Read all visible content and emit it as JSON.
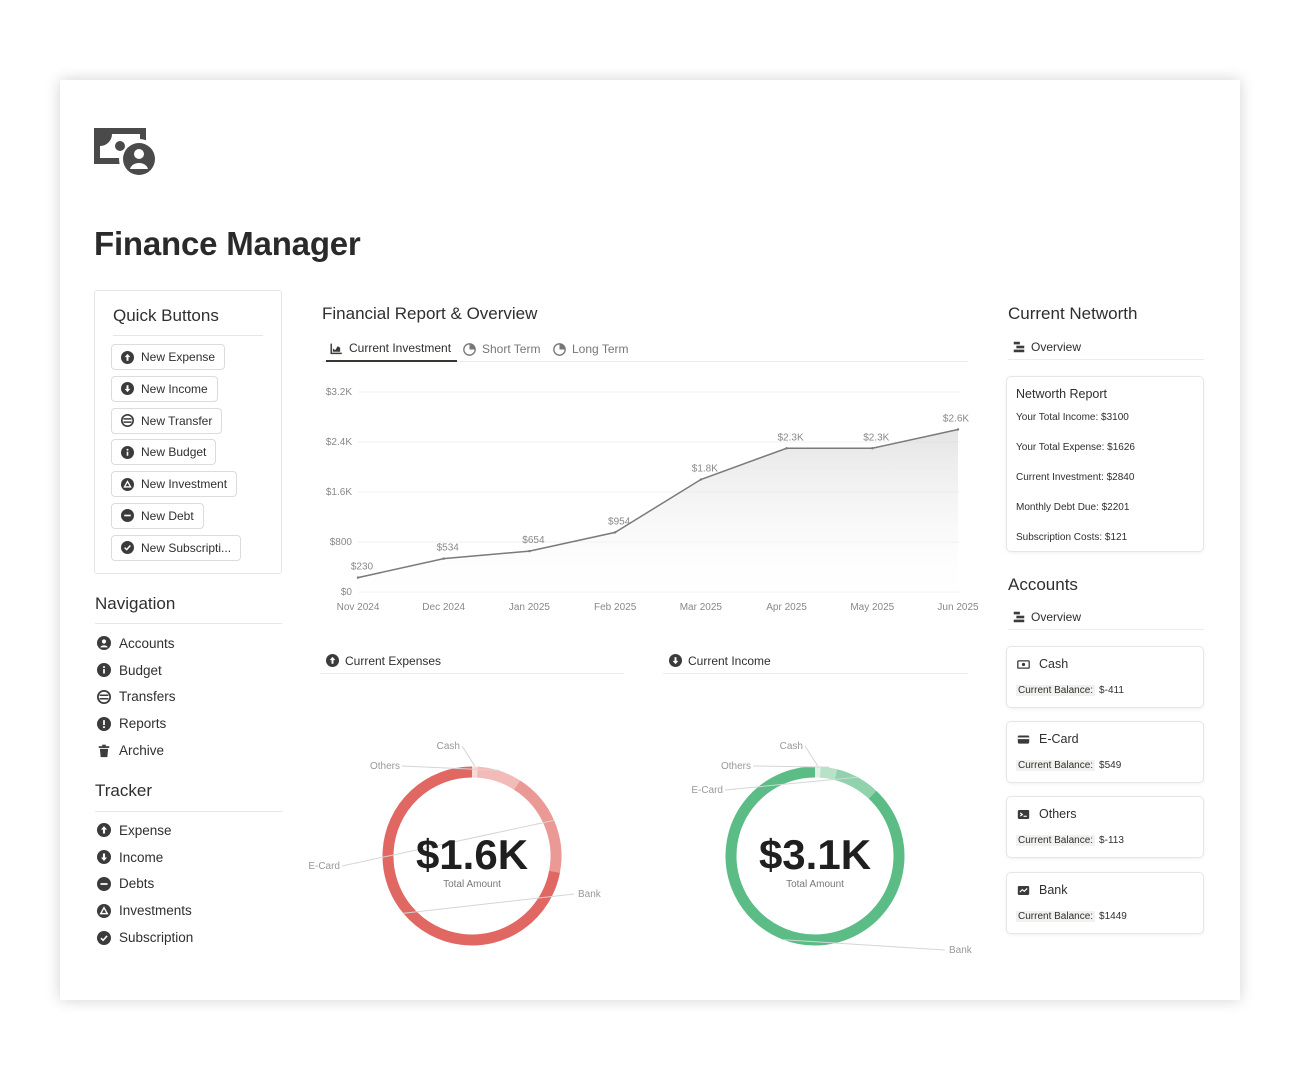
{
  "page": {
    "title": "Finance Manager",
    "logo_icon": "money-bill-user-icon"
  },
  "quick_buttons": {
    "title": "Quick Buttons",
    "items": [
      {
        "label": "New Expense",
        "icon": "arrow-up-circle-icon"
      },
      {
        "label": "New Income",
        "icon": "arrow-down-circle-icon"
      },
      {
        "label": "New Transfer",
        "icon": "transfer-circle-icon"
      },
      {
        "label": "New Budget",
        "icon": "info-circle-icon"
      },
      {
        "label": "New Investment",
        "icon": "triangle-circle-icon"
      },
      {
        "label": "New Debt",
        "icon": "minus-circle-icon"
      },
      {
        "label": "New Subscripti...",
        "icon": "check-circle-icon"
      }
    ]
  },
  "navigation": {
    "title": "Navigation",
    "items": [
      {
        "label": "Accounts",
        "icon": "user-circle-icon"
      },
      {
        "label": "Budget",
        "icon": "info-circle-icon"
      },
      {
        "label": "Transfers",
        "icon": "transfer-circle-icon"
      },
      {
        "label": "Reports",
        "icon": "exclamation-circle-icon"
      },
      {
        "label": "Archive",
        "icon": "trash-icon"
      }
    ]
  },
  "tracker": {
    "title": "Tracker",
    "items": [
      {
        "label": "Expense",
        "icon": "arrow-up-circle-icon"
      },
      {
        "label": "Income",
        "icon": "arrow-down-circle-icon"
      },
      {
        "label": "Debts",
        "icon": "minus-circle-icon"
      },
      {
        "label": "Investments",
        "icon": "triangle-circle-icon"
      },
      {
        "label": "Subscription",
        "icon": "check-circle-icon"
      }
    ]
  },
  "report": {
    "title": "Financial Report & Overview",
    "tabs": [
      {
        "label": "Current Investment",
        "icon": "line-chart-icon",
        "active": true
      },
      {
        "label": "Short Term",
        "icon": "pie-icon",
        "active": false
      },
      {
        "label": "Long Term",
        "icon": "pie-icon",
        "active": false
      }
    ]
  },
  "chart_data": [
    {
      "type": "area",
      "categories": [
        "Nov 2024",
        "Dec 2024",
        "Jan 2025",
        "Feb 2025",
        "Mar 2025",
        "Apr 2025",
        "May 2025",
        "Jun 2025"
      ],
      "values": [
        230,
        534,
        654,
        954,
        1800,
        2300,
        2300,
        2600
      ],
      "data_labels": [
        "$230",
        "$534",
        "$654",
        "$954",
        "$1.8K",
        "$2.3K",
        "$2.3K",
        "$2.6K"
      ],
      "y_ticks": [
        "$0",
        "$800",
        "$1.6K",
        "$2.4K",
        "$3.2K"
      ],
      "y_tick_values": [
        0,
        800,
        1600,
        2400,
        3200
      ],
      "ylim": [
        0,
        3200
      ],
      "grid": true,
      "color": "#7a7a7a"
    },
    {
      "type": "pie",
      "title": "Current Expenses",
      "center_value": "$1.6K",
      "center_label": "Total Amount",
      "categories": [
        "Bank",
        "E-Card",
        "Others",
        "Cash"
      ],
      "values": [
        0.72,
        0.19,
        0.08,
        0.01
      ],
      "colors": [
        "#e06762",
        "#ea9995",
        "#f2bbb8",
        "#f8dad8"
      ]
    },
    {
      "type": "pie",
      "title": "Current Income",
      "center_value": "$3.1K",
      "center_label": "Total Amount",
      "categories": [
        "Bank",
        "E-Card",
        "Others",
        "Cash"
      ],
      "values": [
        0.88,
        0.08,
        0.03,
        0.01
      ],
      "colors": [
        "#5cbc86",
        "#8fd2ab",
        "#b7e2c8",
        "#dff2e7"
      ]
    }
  ],
  "expenses_header": {
    "label": "Current Expenses",
    "icon": "arrow-up-circle-icon"
  },
  "income_header": {
    "label": "Current Income",
    "icon": "arrow-down-circle-icon"
  },
  "networth": {
    "title": "Current Networth",
    "tab": "Overview",
    "card_title": "Networth Report",
    "lines": [
      "Your Total Income: $3100",
      "Your Total Expense: $1626",
      "Current Investment: $2840",
      "Monthly Debt Due: $2201",
      "Subscription Costs: $121"
    ]
  },
  "accounts": {
    "title": "Accounts",
    "tab": "Overview",
    "balance_label": "Current Balance:",
    "items": [
      {
        "name": "Cash",
        "balance": "$-411",
        "icon": "cash-icon"
      },
      {
        "name": "E-Card",
        "balance": "$549",
        "icon": "card-icon"
      },
      {
        "name": "Others",
        "balance": "$-113",
        "icon": "terminal-icon"
      },
      {
        "name": "Bank",
        "balance": "$1449",
        "icon": "bank-card-icon"
      }
    ]
  }
}
